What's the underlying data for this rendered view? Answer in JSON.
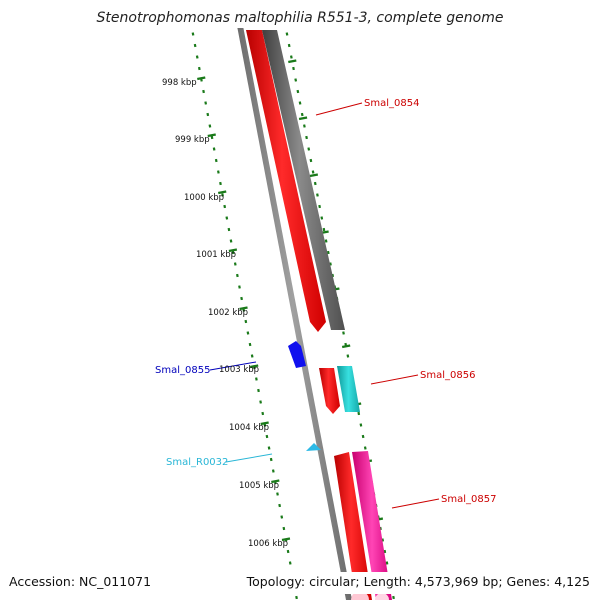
{
  "header": {
    "title": "Stenotrophomonas maltophilia R551-3, complete genome"
  },
  "footer": {
    "accession": "Accession: NC_011071",
    "summary": "Topology: circular; Length: 4,573,969 bp; Genes: 4,125"
  },
  "scale": {
    "tick_color": "#1a7a1a",
    "ticks": [
      "998 kbp",
      "999 kbp",
      "1000 kbp",
      "1001 kbp",
      "1002 kbp",
      "1003 kbp",
      "1004 kbp",
      "1005 kbp",
      "1006 kbp"
    ]
  },
  "genes": [
    {
      "name": "Smal_0854",
      "color": "#cc0000",
      "track": "gray"
    },
    {
      "name": "Smal_0855",
      "color": "#0000bb",
      "track": "blue"
    },
    {
      "name": "Smal_0856",
      "color": "#cc0000",
      "track": "cyan"
    },
    {
      "name": "Smal_R0032",
      "color": "#29b6d6",
      "track": "rna"
    },
    {
      "name": "Smal_0857",
      "color": "#cc0000",
      "track": "pink"
    }
  ],
  "colors": {
    "backbone": "#8c8c8c",
    "cds_red": "#ff1a1a",
    "cds_gray": "#707070",
    "cds_cyan": "#25c8c8",
    "cds_pink": "#ff2fa8",
    "cds_blue": "#1010ee",
    "rna_cyan": "#2cb9e6"
  }
}
